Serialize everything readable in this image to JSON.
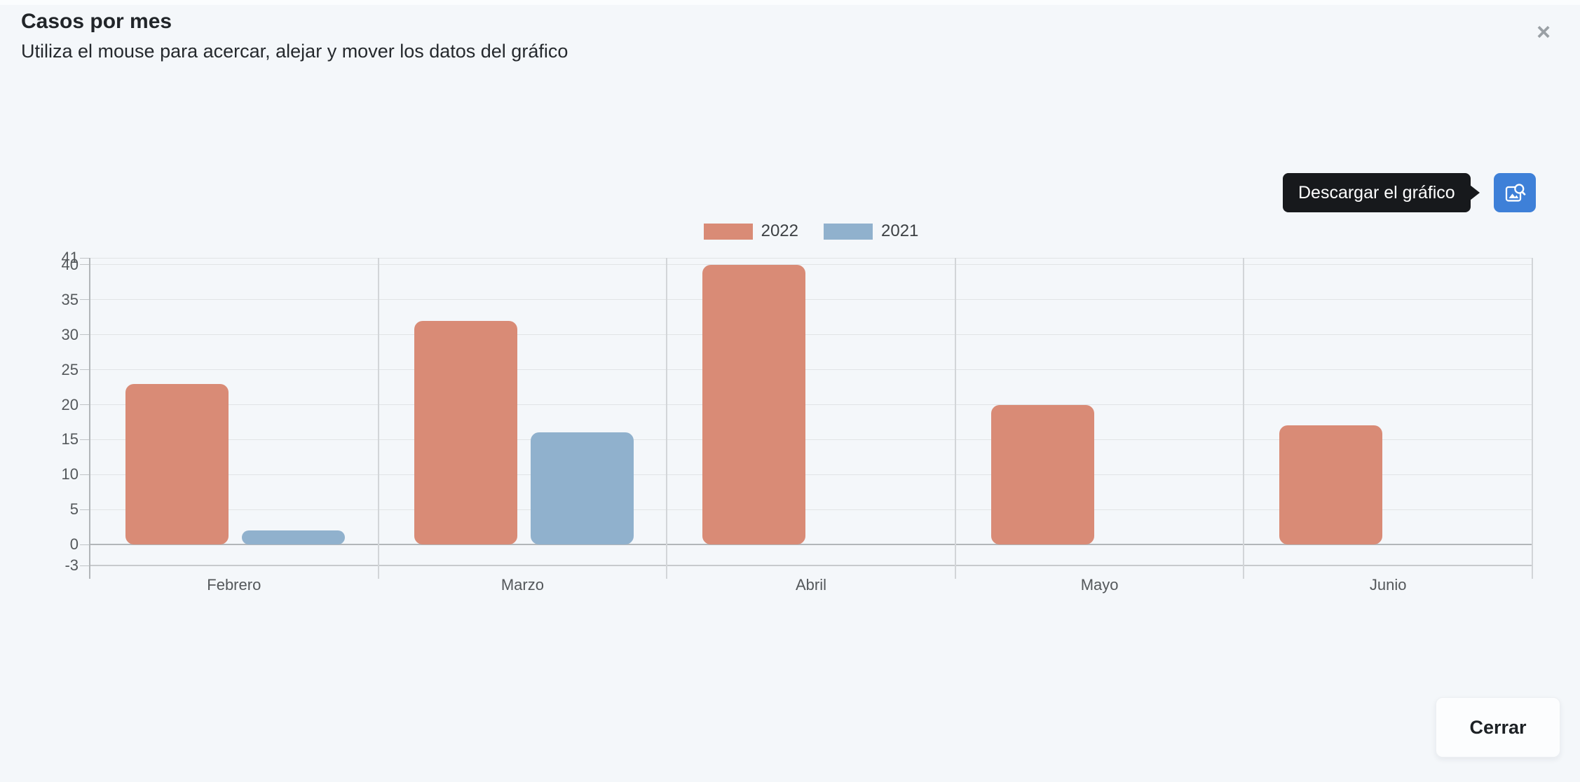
{
  "header": {
    "title": "Casos por mes",
    "subtitle": "Utiliza el mouse para acercar, alejar y mover los datos del gráfico",
    "close_glyph": "×"
  },
  "download": {
    "tooltip": "Descargar el gráfico",
    "button_color": "#3e80d8",
    "icon": "image-export-icon"
  },
  "footer": {
    "close_button_label": "Cerrar"
  },
  "colors": {
    "background": "#f4f7fa",
    "tooltip_background": "#17191c",
    "gridline": "#e1e4e6",
    "axis_line": "#b2b6b9",
    "axis_label": "#54585b",
    "series_2022": "#d98b76",
    "series_2021": "#90b1cd"
  },
  "chart_data": {
    "type": "bar",
    "title": "Casos por mes",
    "categories": [
      "Febrero",
      "Marzo",
      "Abril",
      "Mayo",
      "Junio"
    ],
    "series": [
      {
        "name": "2022",
        "color": "#d98b76",
        "values": [
          23,
          32,
          40,
          20,
          17
        ]
      },
      {
        "name": "2021",
        "color": "#90b1cd",
        "values": [
          2,
          16,
          null,
          null,
          null
        ]
      }
    ],
    "xlabel": "",
    "ylabel": "",
    "ylim": [
      -3,
      41
    ],
    "yticks": [
      41,
      40,
      35,
      30,
      25,
      20,
      15,
      10,
      5,
      0,
      -3
    ],
    "grid": true,
    "legend_position": "top"
  }
}
